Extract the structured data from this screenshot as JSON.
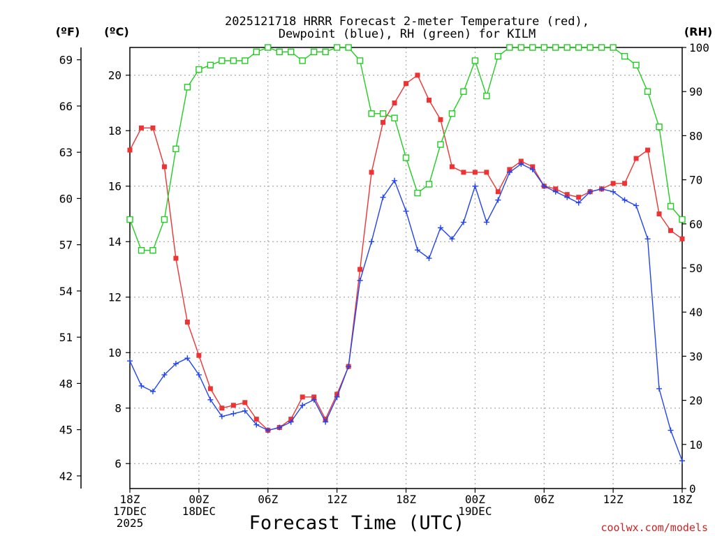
{
  "chart_data": {
    "type": "line",
    "title_lines": [
      "2025121718 HRRR Forecast 2-meter Temperature (red),",
      "Dewpoint (blue), RH (green) for KILM"
    ],
    "xlabel": "Forecast Time (UTC)",
    "credit": "coolwx.com/models",
    "unit_labels": {
      "fahrenheit": "(ºF)",
      "celsius": "(ºC)",
      "rh": "(RH)"
    },
    "x_hours_range": [
      0,
      48
    ],
    "celsius_range": [
      5.1,
      21.0
    ],
    "rh_range": [
      0,
      100
    ],
    "x_ticks": [
      {
        "hour": 0,
        "lines": [
          "18Z",
          "17DEC",
          "2025"
        ]
      },
      {
        "hour": 6,
        "lines": [
          "00Z",
          "18DEC"
        ]
      },
      {
        "hour": 12,
        "lines": [
          "06Z"
        ]
      },
      {
        "hour": 18,
        "lines": [
          "12Z"
        ]
      },
      {
        "hour": 24,
        "lines": [
          "18Z"
        ]
      },
      {
        "hour": 30,
        "lines": [
          "00Z",
          "19DEC"
        ]
      },
      {
        "hour": 36,
        "lines": [
          "06Z"
        ]
      },
      {
        "hour": 42,
        "lines": [
          "12Z"
        ]
      },
      {
        "hour": 48,
        "lines": [
          "18Z"
        ]
      }
    ],
    "celsius_ticks": [
      6,
      8,
      10,
      12,
      14,
      16,
      18,
      20
    ],
    "fahrenheit_ticks": [
      42,
      45,
      48,
      51,
      54,
      57,
      60,
      63,
      66,
      69
    ],
    "rh_ticks": [
      0,
      10,
      20,
      30,
      40,
      50,
      60,
      70,
      80,
      90,
      100
    ],
    "series": [
      {
        "name": "2-meter Temperature",
        "axis": "celsius",
        "color": "#ee3333",
        "marker": "filled-square",
        "values": [
          17.3,
          18.1,
          18.1,
          16.7,
          13.4,
          11.1,
          9.9,
          8.7,
          8.0,
          8.1,
          8.2,
          7.6,
          7.2,
          7.3,
          7.6,
          8.4,
          8.4,
          7.6,
          8.5,
          9.5,
          13.0,
          16.5,
          18.3,
          19.0,
          19.7,
          20.0,
          19.1,
          18.4,
          16.7,
          16.5,
          16.5,
          16.5,
          15.8,
          16.6,
          16.9,
          16.7,
          16.0,
          15.9,
          15.7,
          15.6,
          15.8,
          15.9,
          16.1,
          16.1,
          17.0,
          17.3,
          15.0,
          14.4,
          14.1
        ]
      },
      {
        "name": "Dewpoint",
        "axis": "celsius",
        "color": "#2244ee",
        "marker": "plus",
        "values": [
          9.7,
          8.8,
          8.6,
          9.2,
          9.6,
          9.8,
          9.2,
          8.3,
          7.7,
          7.8,
          7.9,
          7.4,
          7.2,
          7.3,
          7.5,
          8.1,
          8.3,
          7.5,
          8.4,
          9.5,
          12.6,
          14.0,
          15.6,
          16.2,
          15.1,
          13.7,
          13.4,
          14.5,
          14.1,
          14.7,
          16.0,
          14.7,
          15.5,
          16.5,
          16.8,
          16.6,
          16.0,
          15.8,
          15.6,
          15.4,
          15.8,
          15.9,
          15.8,
          15.5,
          15.3,
          14.1,
          8.7,
          7.2,
          6.1
        ]
      },
      {
        "name": "Relative Humidity",
        "axis": "rh",
        "color": "#22cc22",
        "marker": "open-square",
        "values": [
          61,
          54,
          54,
          61,
          77,
          91,
          95,
          96,
          97,
          97,
          97,
          99,
          100,
          99,
          99,
          97,
          99,
          99,
          100,
          100,
          97,
          85,
          85,
          84,
          75,
          67,
          69,
          78,
          85,
          90,
          97,
          89,
          98,
          100,
          100,
          100,
          100,
          100,
          100,
          100,
          100,
          100,
          100,
          98,
          96,
          90,
          82,
          64,
          61
        ]
      }
    ]
  }
}
